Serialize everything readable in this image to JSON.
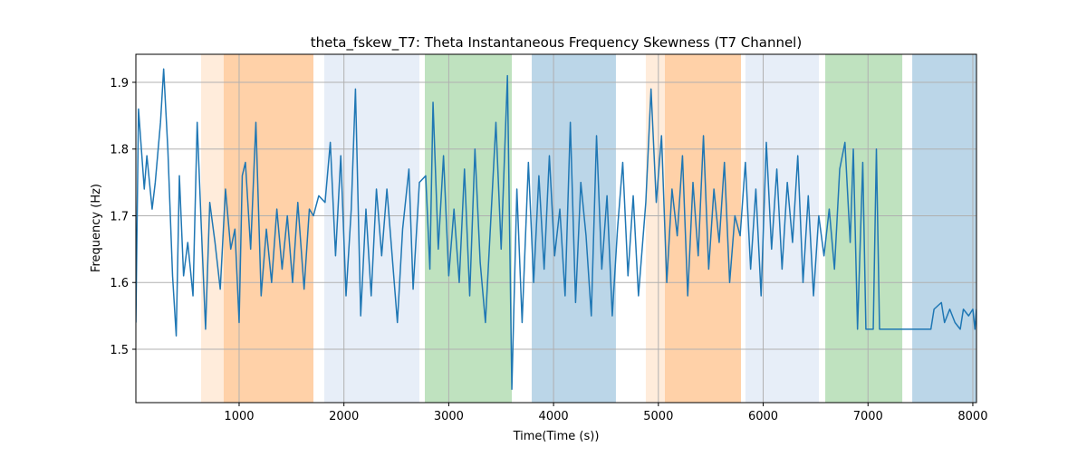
{
  "chart_data": {
    "type": "line",
    "title": "theta_fskew_T7: Theta Instantaneous Frequency Skewness (T7 Channel)",
    "xlabel": "Time(Time (s))",
    "ylabel": "Frequency (Hz)",
    "xlim": [
      15,
      8035
    ],
    "ylim": [
      1.42,
      1.942
    ],
    "xticks": [
      1000,
      2000,
      3000,
      4000,
      5000,
      6000,
      7000,
      8000
    ],
    "yticks": [
      1.5,
      1.6,
      1.7,
      1.8,
      1.9
    ],
    "grid": true,
    "spans": [
      {
        "x0": 637,
        "x1": 1709,
        "color": "#ff7f0e",
        "opacity": 0.15
      },
      {
        "x0": 853,
        "x1": 1709,
        "color": "#ff7f0e",
        "opacity": 0.25
      },
      {
        "x0": 1812,
        "x1": 2720,
        "color": "#aec7e8",
        "opacity": 0.3
      },
      {
        "x0": 2772,
        "x1": 3602,
        "color": "#2ca02c",
        "opacity": 0.3
      },
      {
        "x0": 3792,
        "x1": 4595,
        "color": "#1f77b4",
        "opacity": 0.3
      },
      {
        "x0": 4880,
        "x1": 5788,
        "color": "#ff7f0e",
        "opacity": 0.15
      },
      {
        "x0": 5062,
        "x1": 5788,
        "color": "#ff7f0e",
        "opacity": 0.25
      },
      {
        "x0": 5831,
        "x1": 6532,
        "color": "#aec7e8",
        "opacity": 0.3
      },
      {
        "x0": 6592,
        "x1": 7327,
        "color": "#2ca02c",
        "opacity": 0.3
      },
      {
        "x0": 7422,
        "x1": 8035,
        "color": "#1f77b4",
        "opacity": 0.3
      }
    ],
    "series": [
      {
        "color": "#1f77b4",
        "x": [
          15,
          40,
          95,
          120,
          170,
          200,
          250,
          280,
          320,
          365,
          400,
          430,
          470,
          510,
          560,
          600,
          640,
          680,
          720,
          770,
          820,
          870,
          920,
          960,
          1000,
          1030,
          1060,
          1110,
          1160,
          1210,
          1260,
          1310,
          1360,
          1410,
          1460,
          1510,
          1560,
          1620,
          1670,
          1709,
          1760,
          1820,
          1870,
          1920,
          1970,
          2020,
          2070,
          2110,
          2160,
          2210,
          2260,
          2310,
          2360,
          2410,
          2460,
          2510,
          2560,
          2620,
          2660,
          2720,
          2780,
          2820,
          2850,
          2900,
          2950,
          3000,
          3050,
          3100,
          3150,
          3200,
          3250,
          3300,
          3350,
          3400,
          3450,
          3500,
          3560,
          3602,
          3650,
          3700,
          3760,
          3810,
          3860,
          3910,
          3960,
          4010,
          4060,
          4110,
          4160,
          4210,
          4260,
          4310,
          4360,
          4410,
          4460,
          4510,
          4560,
          4610,
          4660,
          4710,
          4760,
          4810,
          4880,
          4930,
          4980,
          5030,
          5080,
          5130,
          5180,
          5230,
          5280,
          5330,
          5380,
          5430,
          5480,
          5530,
          5580,
          5630,
          5680,
          5730,
          5780,
          5830,
          5880,
          5930,
          5980,
          6030,
          6080,
          6130,
          6180,
          6230,
          6280,
          6330,
          6380,
          6430,
          6480,
          6530,
          6580,
          6630,
          6680,
          6730,
          6780,
          6830,
          6860,
          6900,
          6950,
          6980,
          7050,
          7080,
          7110,
          7300,
          7330,
          7600,
          7630,
          7700,
          7730,
          7780,
          7830,
          7880,
          7910,
          7960,
          8000,
          8020,
          8035
        ],
        "values": [
          1.54,
          1.86,
          1.74,
          1.79,
          1.71,
          1.75,
          1.84,
          1.92,
          1.8,
          1.61,
          1.52,
          1.76,
          1.61,
          1.66,
          1.58,
          1.84,
          1.68,
          1.53,
          1.72,
          1.66,
          1.59,
          1.74,
          1.65,
          1.68,
          1.54,
          1.76,
          1.78,
          1.65,
          1.84,
          1.58,
          1.68,
          1.6,
          1.71,
          1.62,
          1.7,
          1.6,
          1.72,
          1.59,
          1.71,
          1.7,
          1.73,
          1.72,
          1.81,
          1.64,
          1.79,
          1.58,
          1.71,
          1.89,
          1.55,
          1.71,
          1.58,
          1.74,
          1.64,
          1.74,
          1.64,
          1.54,
          1.68,
          1.77,
          1.59,
          1.75,
          1.76,
          1.62,
          1.87,
          1.65,
          1.79,
          1.61,
          1.71,
          1.6,
          1.77,
          1.58,
          1.8,
          1.63,
          1.54,
          1.69,
          1.84,
          1.65,
          1.91,
          1.44,
          1.74,
          1.54,
          1.78,
          1.6,
          1.76,
          1.62,
          1.79,
          1.64,
          1.71,
          1.58,
          1.84,
          1.57,
          1.75,
          1.67,
          1.55,
          1.82,
          1.62,
          1.73,
          1.55,
          1.68,
          1.78,
          1.61,
          1.73,
          1.58,
          1.72,
          1.89,
          1.72,
          1.82,
          1.6,
          1.74,
          1.67,
          1.79,
          1.58,
          1.75,
          1.64,
          1.82,
          1.62,
          1.74,
          1.66,
          1.78,
          1.6,
          1.7,
          1.67,
          1.78,
          1.62,
          1.74,
          1.58,
          1.81,
          1.65,
          1.77,
          1.62,
          1.75,
          1.66,
          1.79,
          1.6,
          1.73,
          1.58,
          1.7,
          1.64,
          1.71,
          1.62,
          1.77,
          1.81,
          1.66,
          1.8,
          1.53,
          1.78,
          1.53,
          1.53,
          1.8,
          1.53,
          1.53,
          1.53,
          1.53,
          1.56,
          1.57,
          1.54,
          1.56,
          1.54,
          1.53,
          1.56,
          1.55,
          1.56,
          1.53,
          1.56
        ]
      }
    ]
  }
}
